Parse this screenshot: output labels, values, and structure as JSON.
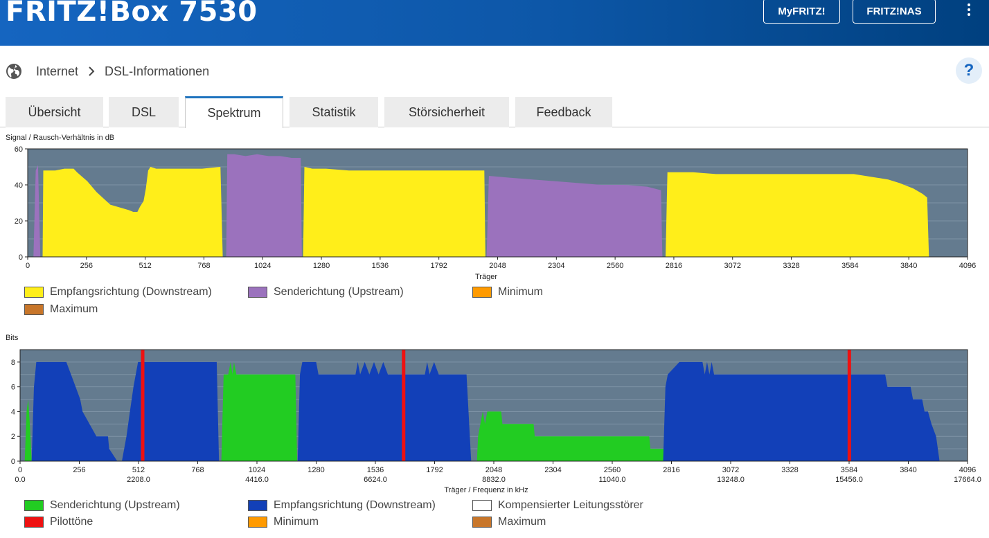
{
  "header": {
    "brand": "FRITZ!Box 7530",
    "myfritz_label": "MyFRITZ!",
    "fritznas_label": "FRITZ!NAS"
  },
  "breadcrumb": {
    "item1": "Internet",
    "item2": "DSL-Informationen"
  },
  "help_label": "?",
  "tabs": [
    {
      "label": "Übersicht"
    },
    {
      "label": "DSL"
    },
    {
      "label": "Spektrum",
      "active": true
    },
    {
      "label": "Statistik"
    },
    {
      "label": "Störsicherheit"
    },
    {
      "label": "Feedback"
    }
  ],
  "colors": {
    "plot_bg": "#647b8f",
    "downstream_snr": "#ffee1a",
    "upstream_snr": "#9b72bd",
    "minimum": "#ff9a00",
    "maximum": "#c8762a",
    "bits_up": "#22cc22",
    "bits_down": "#1240b8",
    "pilot": "#ee1111"
  },
  "snr_chart": {
    "title": "Signal / Rausch-Verhältnis in dB",
    "xlabel": "Träger",
    "legend": {
      "downstream": "Empfangsrichtung (Downstream)",
      "upstream": "Senderichtung (Upstream)",
      "minimum": "Minimum",
      "maximum": "Maximum"
    }
  },
  "bits_chart": {
    "title": "Bits",
    "xlabel": "Träger / Frequenz in kHz",
    "legend": {
      "upstream": "Senderichtung (Upstream)",
      "downstream": "Empfangsrichtung (Downstream)",
      "compensated": "Kompensierter Leitungsstörer",
      "pilot": "Pilottöne",
      "minimum": "Minimum",
      "maximum": "Maximum"
    }
  },
  "chart_data": [
    {
      "type": "area",
      "title": "Signal / Rausch-Verhältnis in dB",
      "xlabel": "Träger",
      "ylabel": "",
      "xlim": [
        0,
        4096
      ],
      "ylim": [
        0,
        60
      ],
      "xticks": [
        0,
        256,
        512,
        768,
        1024,
        1280,
        1536,
        1792,
        2048,
        2304,
        2560,
        2816,
        3072,
        3328,
        3584,
        3840,
        4096
      ],
      "yticks": [
        0,
        20,
        40,
        60
      ],
      "grid": true,
      "legend_position": "bottom",
      "series": [
        {
          "name": "Empfangsrichtung (Downstream)",
          "color": "#ffee1a",
          "points": [
            [
              65,
              0
            ],
            [
              68,
              48
            ],
            [
              120,
              48
            ],
            [
              160,
              49
            ],
            [
              200,
              49
            ],
            [
              215,
              47
            ],
            [
              260,
              42
            ],
            [
              300,
              36
            ],
            [
              360,
              29
            ],
            [
              440,
              26
            ],
            [
              460,
              25
            ],
            [
              478,
              25
            ],
            [
              490,
              28
            ],
            [
              505,
              31
            ],
            [
              515,
              38
            ],
            [
              525,
              48
            ],
            [
              535,
              50
            ],
            [
              560,
              49
            ],
            [
              600,
              49
            ],
            [
              700,
              49
            ],
            [
              760,
              49
            ],
            [
              840,
              50
            ],
            [
              850,
              0
            ],
            [
              1200,
              0
            ],
            [
              1206,
              50
            ],
            [
              1240,
              49
            ],
            [
              1300,
              49
            ],
            [
              1400,
              48
            ],
            [
              1500,
              48
            ],
            [
              1600,
              48
            ],
            [
              1700,
              48
            ],
            [
              1800,
              48
            ],
            [
              1900,
              48
            ],
            [
              1990,
              48
            ],
            [
              1995,
              0
            ],
            [
              2780,
              0
            ],
            [
              2788,
              47
            ],
            [
              2850,
              47
            ],
            [
              2900,
              47
            ],
            [
              3000,
              46
            ],
            [
              3100,
              46
            ],
            [
              3200,
              46
            ],
            [
              3300,
              46
            ],
            [
              3400,
              46
            ],
            [
              3500,
              46
            ],
            [
              3600,
              46
            ],
            [
              3700,
              44
            ],
            [
              3750,
              43
            ],
            [
              3800,
              41
            ],
            [
              3860,
              38
            ],
            [
              3900,
              35
            ],
            [
              3920,
              33
            ],
            [
              3928,
              0
            ]
          ]
        },
        {
          "name": "Senderichtung (Upstream)",
          "color": "#9b72bd",
          "points": [
            [
              25,
              0
            ],
            [
              35,
              48
            ],
            [
              45,
              51
            ],
            [
              55,
              0
            ],
            [
              865,
              0
            ],
            [
              870,
              57
            ],
            [
              900,
              57
            ],
            [
              950,
              56
            ],
            [
              1000,
              57
            ],
            [
              1050,
              56
            ],
            [
              1100,
              56
            ],
            [
              1150,
              55
            ],
            [
              1190,
              55
            ],
            [
              1195,
              0
            ],
            [
              2000,
              0
            ],
            [
              2010,
              45
            ],
            [
              2100,
              44
            ],
            [
              2200,
              43
            ],
            [
              2300,
              42
            ],
            [
              2400,
              41
            ],
            [
              2500,
              40
            ],
            [
              2600,
              40
            ],
            [
              2700,
              39
            ],
            [
              2760,
              37
            ],
            [
              2766,
              0
            ]
          ]
        }
      ]
    },
    {
      "type": "area",
      "title": "Bits",
      "xlabel": "Träger / Frequenz in kHz",
      "ylabel": "",
      "xlim": [
        0,
        4096
      ],
      "ylim": [
        0,
        9
      ],
      "xticks": [
        0,
        256,
        512,
        768,
        1024,
        1280,
        1536,
        1792,
        2048,
        2304,
        2560,
        2816,
        3072,
        3328,
        3584,
        3840,
        4096
      ],
      "xticks_freq_khz": [
        "0.0",
        "2208.0",
        "4416.0",
        "6624.0",
        "8832.0",
        "11040.0",
        "13248.0",
        "15456.0",
        "17664.0"
      ],
      "yticks": [
        0,
        2,
        4,
        6,
        8
      ],
      "grid": true,
      "legend_position": "bottom",
      "series": [
        {
          "name": "Senderichtung (Upstream)",
          "color": "#22cc22",
          "points": [
            [
              20,
              0
            ],
            [
              28,
              4
            ],
            [
              35,
              5
            ],
            [
              42,
              3
            ],
            [
              50,
              0
            ],
            [
              870,
              0
            ],
            [
              880,
              7
            ],
            [
              900,
              7
            ],
            [
              910,
              8
            ],
            [
              918,
              7
            ],
            [
              925,
              8
            ],
            [
              935,
              7
            ],
            [
              1190,
              7
            ],
            [
              1198,
              0
            ],
            [
              1975,
              0
            ],
            [
              1980,
              2
            ],
            [
              1990,
              3
            ],
            [
              2000,
              4
            ],
            [
              2010,
              3
            ],
            [
              2020,
              4
            ],
            [
              2080,
              4
            ],
            [
              2085,
              3
            ],
            [
              2220,
              3
            ],
            [
              2225,
              2
            ],
            [
              2720,
              2
            ],
            [
              2725,
              1
            ],
            [
              2790,
              1
            ],
            [
              2795,
              0
            ]
          ]
        },
        {
          "name": "Empfangsrichtung (Downstream)",
          "color": "#1240b8",
          "points": [
            [
              50,
              0
            ],
            [
              60,
              6
            ],
            [
              70,
              8
            ],
            [
              200,
              8
            ],
            [
              220,
              7
            ],
            [
              240,
              6
            ],
            [
              260,
              5
            ],
            [
              270,
              4
            ],
            [
              300,
              3
            ],
            [
              330,
              2
            ],
            [
              380,
              2
            ],
            [
              385,
              1
            ],
            [
              420,
              0
            ],
            [
              440,
              0
            ],
            [
              460,
              2
            ],
            [
              475,
              4
            ],
            [
              490,
              6
            ],
            [
              500,
              7
            ],
            [
              510,
              8
            ],
            [
              850,
              8
            ],
            [
              860,
              0
            ],
            [
              1200,
              0
            ],
            [
              1210,
              7
            ],
            [
              1220,
              8
            ],
            [
              1280,
              8
            ],
            [
              1290,
              7
            ],
            [
              1450,
              7
            ],
            [
              1460,
              8
            ],
            [
              1470,
              7
            ],
            [
              1490,
              8
            ],
            [
              1510,
              7
            ],
            [
              1530,
              8
            ],
            [
              1550,
              7
            ],
            [
              1570,
              8
            ],
            [
              1590,
              7
            ],
            [
              1750,
              7
            ],
            [
              1760,
              8
            ],
            [
              1770,
              7
            ],
            [
              1790,
              8
            ],
            [
              1810,
              7
            ],
            [
              1930,
              7
            ],
            [
              1950,
              0
            ],
            [
              2780,
              0
            ],
            [
              2790,
              6
            ],
            [
              2800,
              7
            ],
            [
              2850,
              8
            ],
            [
              2950,
              8
            ],
            [
              2960,
              7
            ],
            [
              2970,
              8
            ],
            [
              2980,
              7
            ],
            [
              2990,
              8
            ],
            [
              3000,
              7
            ],
            [
              3740,
              7
            ],
            [
              3750,
              6
            ],
            [
              3850,
              6
            ],
            [
              3860,
              5
            ],
            [
              3900,
              5
            ],
            [
              3910,
              4
            ],
            [
              3925,
              4
            ],
            [
              3940,
              3
            ],
            [
              3960,
              2
            ],
            [
              3975,
              0
            ]
          ]
        },
        {
          "name": "Pilottöne",
          "color": "#ee1111",
          "x": [
            530,
            1658,
            3585
          ]
        }
      ]
    }
  ]
}
